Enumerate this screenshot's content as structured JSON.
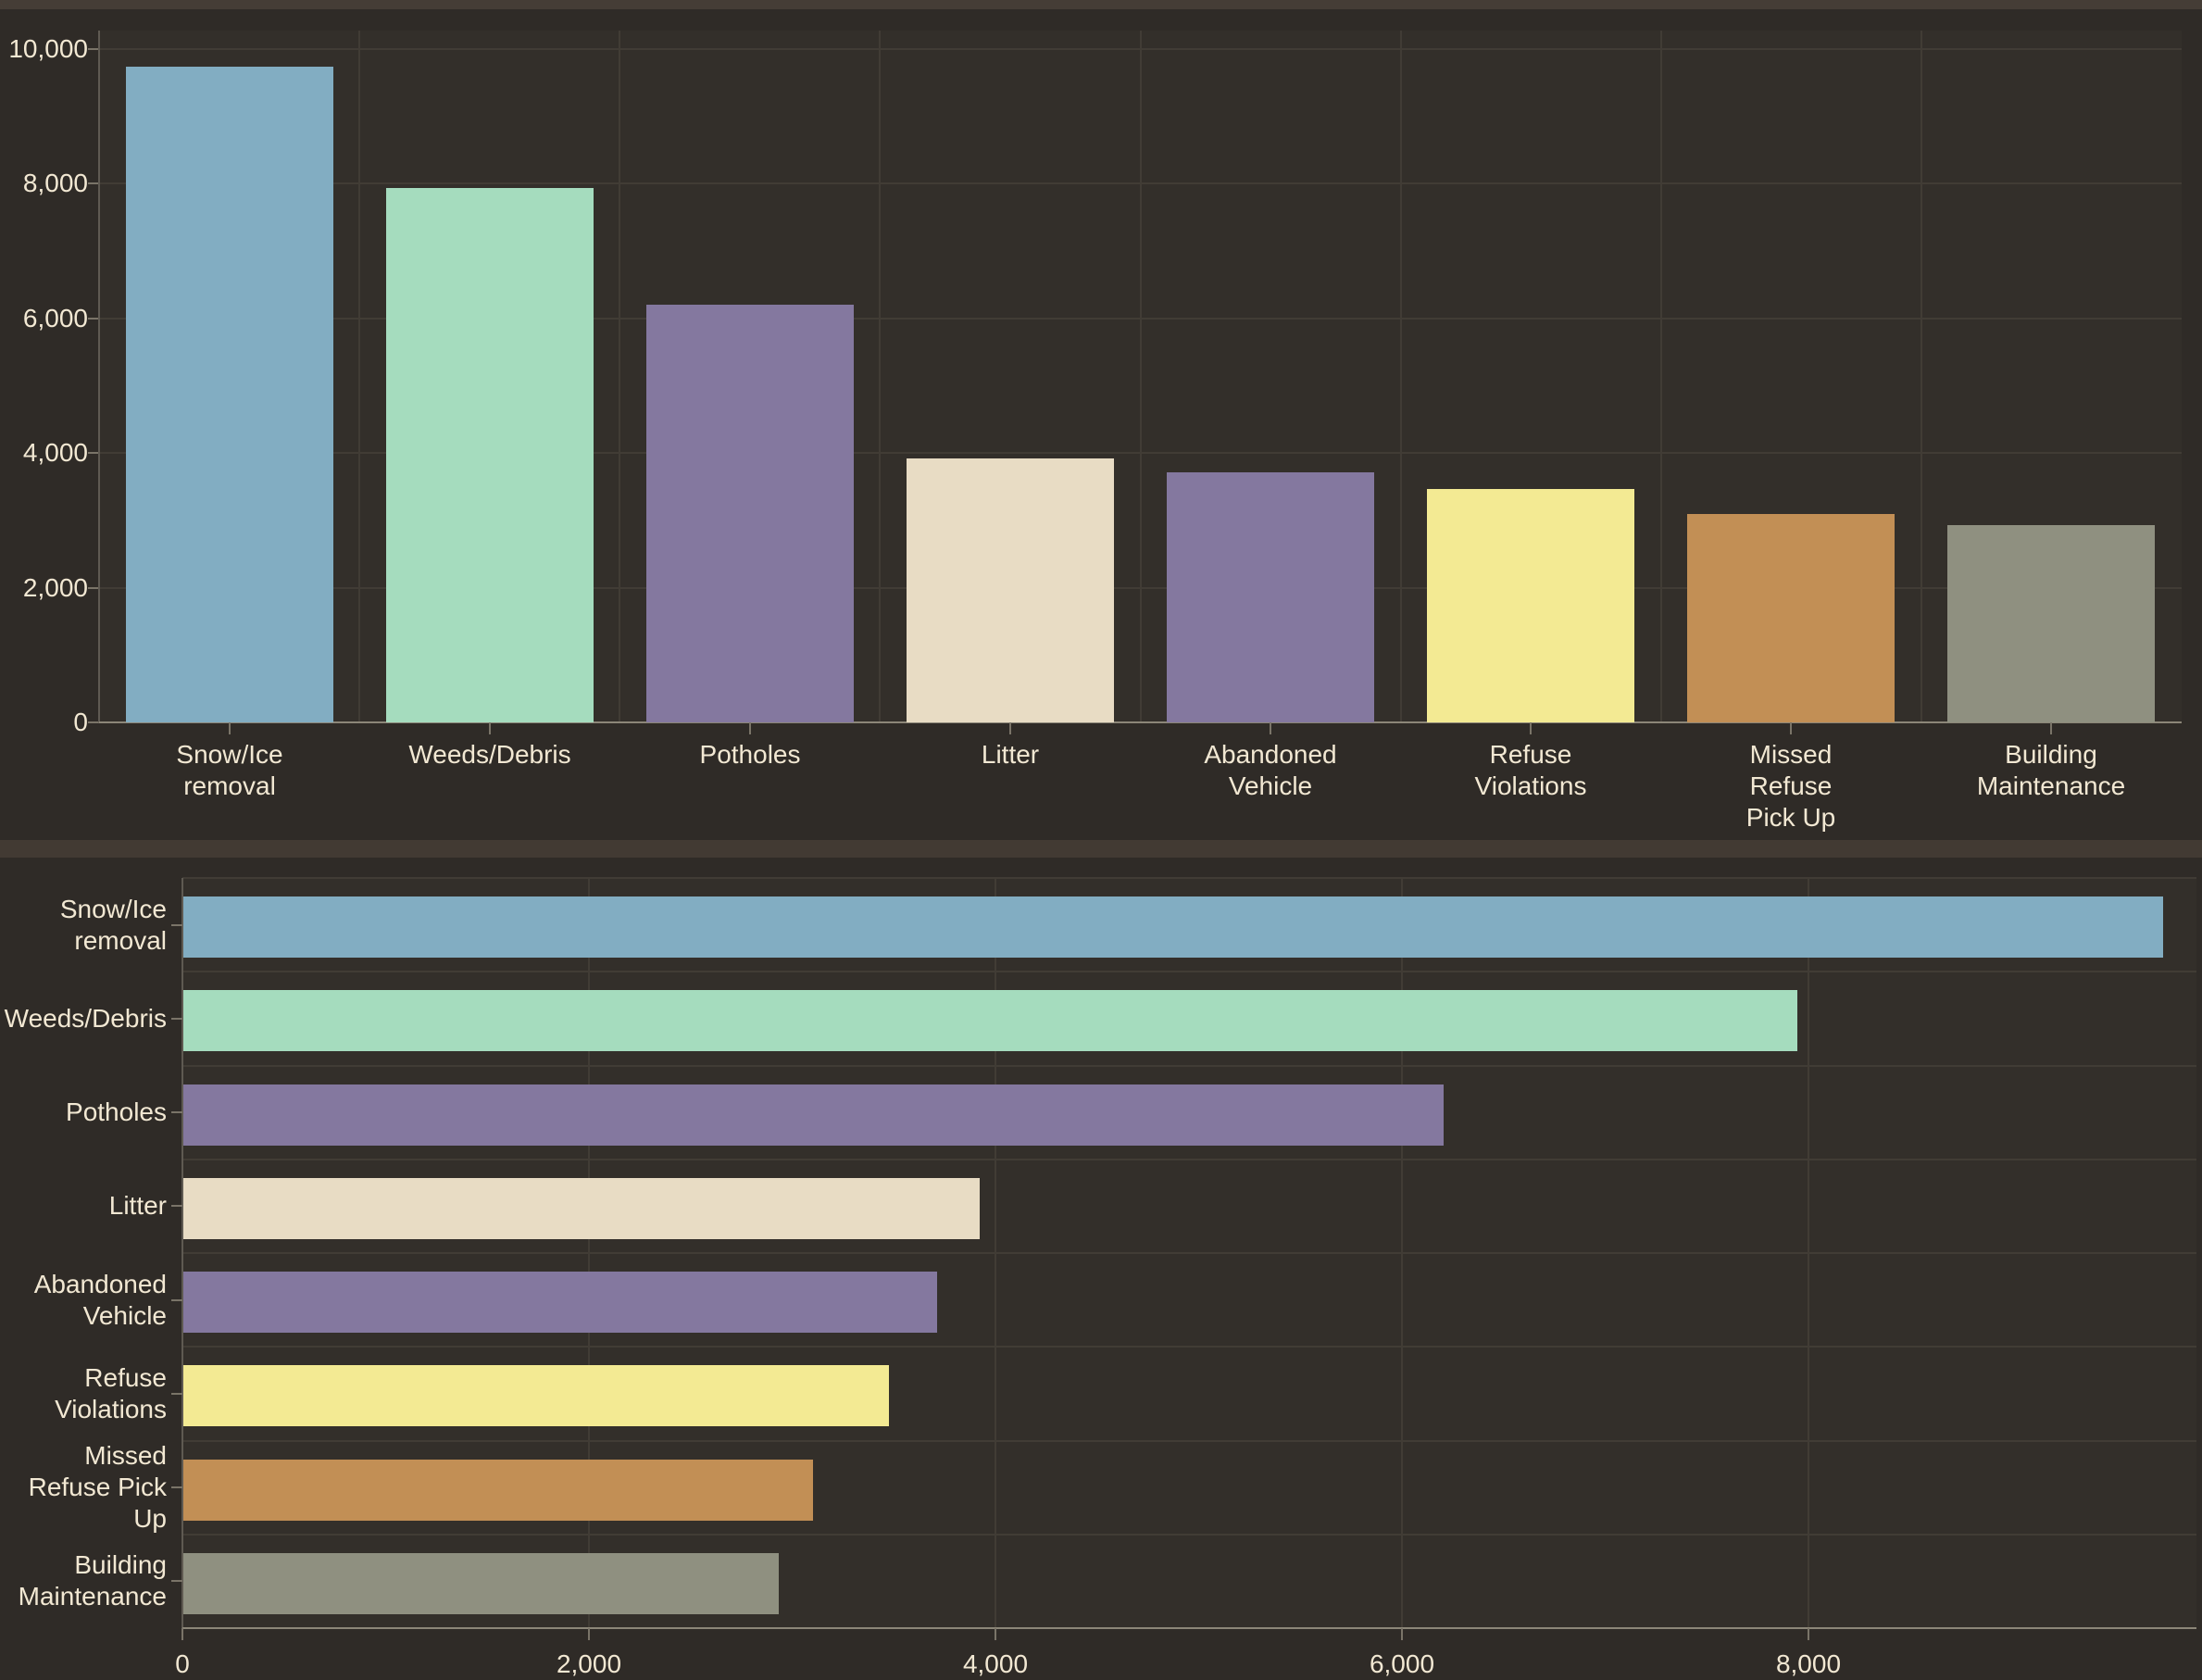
{
  "palette": {
    "page_bg": "#2f2b27",
    "plot_bg": "#332f2a",
    "top_strip": "#453d36",
    "panel_divider": "#423a33",
    "gridline": "#413c35",
    "axis_line": "#8c8678",
    "axis_line_minor": "#5f5a52",
    "tick_color": "#7a7468",
    "text_color": "#f2e8d3"
  },
  "chart_data": [
    {
      "type": "bar",
      "orientation": "vertical",
      "title": "",
      "xlabel": "",
      "ylabel": "",
      "grid": true,
      "categories": [
        "Snow/Ice removal",
        "Weeds/Debris",
        "Potholes",
        "Litter",
        "Abandoned Vehicle",
        "Refuse Violations",
        "Missed Refuse Pick Up",
        "Building Maintenance"
      ],
      "category_label_lines": [
        [
          "Snow/Ice",
          "removal"
        ],
        [
          "Weeds/Debris"
        ],
        [
          "Potholes"
        ],
        [
          "Litter"
        ],
        [
          "Abandoned",
          "Vehicle"
        ],
        [
          "Refuse",
          "Violations"
        ],
        [
          "Missed",
          "Refuse",
          "Pick Up"
        ],
        [
          "Building",
          "Maintenance"
        ]
      ],
      "values": [
        9740,
        7940,
        6200,
        3920,
        3710,
        3470,
        3100,
        2930
      ],
      "bar_colors": [
        "#82adc2",
        "#a5dcbe",
        "#84789f",
        "#e8dcc4",
        "#84789f",
        "#f3ea93",
        "#c28f55",
        "#8f9080"
      ],
      "ylim": [
        0,
        10000
      ],
      "yticks": [
        {
          "value": 0,
          "label": "0"
        },
        {
          "value": 2000,
          "label": "2,000"
        },
        {
          "value": 4000,
          "label": "4,000"
        },
        {
          "value": 6000,
          "label": "6,000"
        },
        {
          "value": 8000,
          "label": "8,000"
        },
        {
          "value": 10000,
          "label": "10,000"
        }
      ]
    },
    {
      "type": "bar",
      "orientation": "horizontal",
      "title": "",
      "xlabel": "",
      "ylabel": "",
      "grid": true,
      "categories": [
        "Snow/Ice removal",
        "Weeds/Debris",
        "Potholes",
        "Litter",
        "Abandoned Vehicle",
        "Refuse Violations",
        "Missed Refuse Pick Up",
        "Building Maintenance"
      ],
      "category_label_lines": [
        [
          "Snow/Ice",
          "removal"
        ],
        [
          "Weeds/Debris"
        ],
        [
          "Potholes"
        ],
        [
          "Litter"
        ],
        [
          "Abandoned",
          "Vehicle"
        ],
        [
          "Refuse",
          "Violations"
        ],
        [
          "Missed",
          "Refuse Pick",
          "Up"
        ],
        [
          "Building",
          "Maintenance"
        ]
      ],
      "values": [
        9740,
        7940,
        6200,
        3920,
        3710,
        3470,
        3100,
        2930
      ],
      "bar_colors": [
        "#82adc2",
        "#a5dcbe",
        "#84789f",
        "#e8dcc4",
        "#84789f",
        "#f3ea93",
        "#c28f55",
        "#8f9080"
      ],
      "xlim": [
        0,
        9900
      ],
      "xticks": [
        {
          "value": 0,
          "label": "0"
        },
        {
          "value": 2000,
          "label": "2,000"
        },
        {
          "value": 4000,
          "label": "4,000"
        },
        {
          "value": 6000,
          "label": "6,000"
        },
        {
          "value": 8000,
          "label": "8,000"
        }
      ]
    }
  ]
}
